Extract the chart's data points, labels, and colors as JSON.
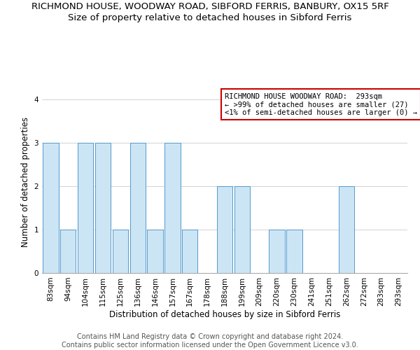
{
  "title": "RICHMOND HOUSE, WOODWAY ROAD, SIBFORD FERRIS, BANBURY, OX15 5RF",
  "subtitle": "Size of property relative to detached houses in Sibford Ferris",
  "xlabel": "Distribution of detached houses by size in Sibford Ferris",
  "ylabel": "Number of detached properties",
  "categories": [
    "83sqm",
    "94sqm",
    "104sqm",
    "115sqm",
    "125sqm",
    "136sqm",
    "146sqm",
    "157sqm",
    "167sqm",
    "178sqm",
    "188sqm",
    "199sqm",
    "209sqm",
    "220sqm",
    "230sqm",
    "241sqm",
    "251sqm",
    "262sqm",
    "272sqm",
    "283sqm",
    "293sqm"
  ],
  "values": [
    3,
    1,
    3,
    3,
    1,
    3,
    1,
    3,
    1,
    0,
    2,
    2,
    0,
    1,
    1,
    0,
    0,
    2,
    0,
    0,
    0
  ],
  "bar_color": "#cce5f5",
  "bar_edge_color": "#5599cc",
  "ylim": [
    0,
    4.2
  ],
  "yticks": [
    0,
    1,
    2,
    3,
    4
  ],
  "annotation_text": "RICHMOND HOUSE WOODWAY ROAD:  293sqm\n← >99% of detached houses are smaller (27)\n<1% of semi-detached houses are larger (0) →",
  "annotation_box_color": "#ffffff",
  "annotation_box_edge_color": "#cc0000",
  "footnote": "Contains HM Land Registry data © Crown copyright and database right 2024.\nContains public sector information licensed under the Open Government Licence v3.0.",
  "title_fontsize": 9.5,
  "subtitle_fontsize": 9.5,
  "xlabel_fontsize": 8.5,
  "ylabel_fontsize": 8.5,
  "tick_fontsize": 7.5,
  "annotation_fontsize": 7.5,
  "footnote_fontsize": 7.0
}
